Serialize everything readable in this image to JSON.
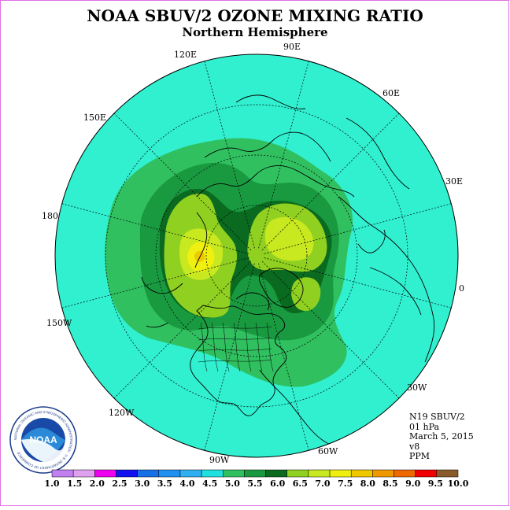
{
  "title": "NOAA SBUV/2 OZONE MIXING RATIO",
  "subtitle": "Northern Hemisphere",
  "longitude_labels": [
    "90E",
    "60E",
    "30E",
    "0",
    "30W",
    "60W",
    "90W",
    "120W",
    "150W",
    "180",
    "150E",
    "120E"
  ],
  "info": {
    "satellite": "N19 SBUV/2",
    "level": "01 hPa",
    "date": "March 5, 2015",
    "version": "v8",
    "units": "PPM"
  },
  "logo": {
    "text": "NOAA",
    "ring_text": "NATIONAL OCEANIC AND ATMOSPHERIC ADMINISTRATION · U.S. DEPARTMENT OF COMMERCE"
  },
  "colorbar": {
    "labels": [
      "1.0",
      "1.5",
      "2.0",
      "2.5",
      "3.0",
      "3.5",
      "4.0",
      "4.5",
      "5.0",
      "5.5",
      "6.0",
      "6.5",
      "7.0",
      "7.5",
      "8.0",
      "8.5",
      "9.0",
      "9.5",
      "10.0"
    ],
    "colors": [
      "#c080f0",
      "#e0a0f0",
      "#f000f0",
      "#1010f0",
      "#1870e8",
      "#2090f0",
      "#30b0f0",
      "#20e0e0",
      "#30c060",
      "#1a9a40",
      "#0a6a20",
      "#90d020",
      "#c8e820",
      "#f0f010",
      "#f0c800",
      "#f09800",
      "#f06800",
      "#f00000",
      "#8b5a2b"
    ]
  },
  "map": {
    "background_color": "#30f0d0"
  }
}
